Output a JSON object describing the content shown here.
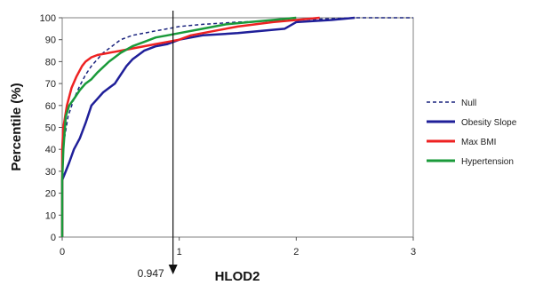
{
  "chart_data": {
    "type": "line",
    "title": "",
    "xlabel": "HLOD2",
    "ylabel": "Percentile (%)",
    "xlim": [
      0,
      3
    ],
    "ylim": [
      0,
      100
    ],
    "x_ticks": [
      0,
      1,
      2,
      3
    ],
    "y_ticks": [
      0,
      10,
      20,
      30,
      40,
      50,
      60,
      70,
      80,
      90,
      100
    ],
    "grid": false,
    "legend_position": "right",
    "annotation": {
      "label": "0.947",
      "x": 0.947,
      "arrow": "down"
    },
    "series": [
      {
        "name": "Null",
        "color": "#1a237e",
        "style": "dashed",
        "x": [
          0,
          0.01,
          0.05,
          0.1,
          0.15,
          0.2,
          0.25,
          0.3,
          0.35,
          0.4,
          0.45,
          0.5,
          0.6,
          0.7,
          0.8,
          0.9,
          1.0,
          1.2,
          1.5,
          2.0,
          2.5,
          3.0
        ],
        "y": [
          30,
          42,
          55,
          63,
          69,
          74,
          78,
          81,
          84,
          86,
          88,
          90,
          92,
          93,
          94,
          95,
          96,
          97,
          98,
          99,
          100,
          100
        ]
      },
      {
        "name": "Obesity Slope",
        "color": "#1f1f99",
        "style": "solid",
        "x": [
          0,
          0.03,
          0.06,
          0.1,
          0.15,
          0.2,
          0.25,
          0.3,
          0.35,
          0.4,
          0.45,
          0.5,
          0.55,
          0.6,
          0.7,
          0.8,
          0.9,
          1.0,
          1.2,
          1.5,
          1.9,
          2.0,
          2.3,
          2.5
        ],
        "y": [
          26,
          30,
          34,
          40,
          45,
          52,
          60,
          63,
          66,
          68,
          70,
          74,
          78,
          81,
          85,
          87,
          88,
          90,
          92,
          93,
          95,
          98,
          99,
          100
        ]
      },
      {
        "name": "Max BMI",
        "color": "#ee2222",
        "style": "solid",
        "x": [
          0,
          0.01,
          0.04,
          0.08,
          0.12,
          0.17,
          0.2,
          0.25,
          0.3,
          0.4,
          0.5,
          0.6,
          0.7,
          0.8,
          0.9,
          1.0,
          1.1,
          1.3,
          1.5,
          1.8,
          2.0,
          2.2
        ],
        "y": [
          40,
          50,
          60,
          68,
          73,
          78,
          80,
          82,
          83,
          84,
          85,
          86,
          87,
          88,
          89,
          90,
          92,
          94,
          96,
          98,
          99,
          100
        ]
      },
      {
        "name": "Hypertension",
        "color": "#1a9a3a",
        "style": "solid",
        "x": [
          0,
          0.01,
          0.03,
          0.06,
          0.1,
          0.15,
          0.2,
          0.25,
          0.3,
          0.4,
          0.5,
          0.6,
          0.7,
          0.8,
          0.9,
          1.0,
          1.2,
          1.4,
          1.6,
          1.8,
          2.0
        ],
        "y": [
          26,
          40,
          55,
          60,
          63,
          67,
          70,
          72,
          75,
          80,
          84,
          87,
          89,
          91,
          92,
          93,
          95,
          97,
          98,
          99,
          100
        ]
      }
    ]
  }
}
